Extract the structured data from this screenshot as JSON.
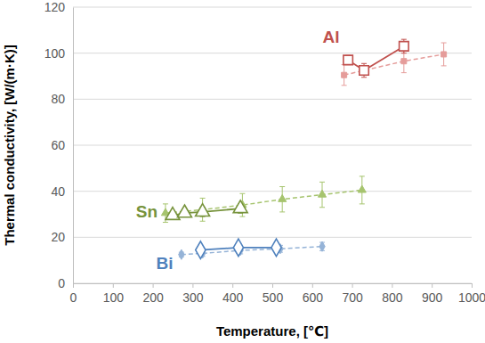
{
  "chart_data": {
    "type": "line",
    "x_label": "Temperature, [℃]",
    "y_label": "Thermal conductivity, [W/(m·K)]",
    "xlim": [
      0,
      1000
    ],
    "xticks": [
      0,
      100,
      200,
      300,
      400,
      500,
      600,
      700,
      800,
      900,
      1000
    ],
    "ylim": [
      0,
      120
    ],
    "yticks": [
      0,
      20,
      40,
      60,
      80,
      100,
      120
    ],
    "grid": true,
    "annotations": [
      {
        "text": "Al",
        "color": "#c0504d"
      },
      {
        "text": "Sn",
        "color": "#77933c"
      },
      {
        "text": "Bi",
        "color": "#4f81bd"
      }
    ],
    "series": [
      {
        "color": "#e59c9a",
        "marker": "square",
        "line_style": "dashed",
        "x": [
          680,
          830,
          930
        ],
        "values": [
          90.5,
          96.5,
          99.5
        ],
        "error": [
          4.5,
          5,
          5
        ]
      },
      {
        "color": "#c0504d",
        "marker": "square-open",
        "line_style": "solid",
        "x": [
          690,
          730,
          830
        ],
        "values": [
          97,
          92.5,
          103
        ],
        "error": [
          2,
          3,
          3
        ]
      },
      {
        "color": "#a6c46e",
        "marker": "triangle",
        "line_style": "dashed",
        "x": [
          232,
          325,
          425,
          525,
          625,
          725
        ],
        "values": [
          30.5,
          32,
          34,
          36.5,
          38.5,
          40.5
        ],
        "error": [
          4,
          5,
          5,
          5.5,
          5.5,
          6
        ]
      },
      {
        "color": "#77933c",
        "marker": "triangle-open",
        "line_style": "solid",
        "x": [
          250,
          280,
          325,
          420
        ],
        "values": [
          29.5,
          30.5,
          31,
          32.5
        ],
        "error": [
          1.5,
          1,
          2,
          2
        ]
      },
      {
        "color": "#95b3d7",
        "marker": "diamond",
        "line_style": "dashed",
        "x": [
          272,
          325,
          420,
          520,
          625
        ],
        "values": [
          12.5,
          13,
          14.3,
          15,
          16
        ],
        "error": [
          1,
          1.3,
          1.5,
          1.5,
          1.8
        ]
      },
      {
        "color": "#4f81bd",
        "marker": "diamond-open",
        "line_style": "solid",
        "x": [
          320,
          415,
          510
        ],
        "values": [
          14.5,
          15.5,
          15.5
        ],
        "error": [
          0.8,
          0.8,
          0.8
        ]
      }
    ]
  }
}
